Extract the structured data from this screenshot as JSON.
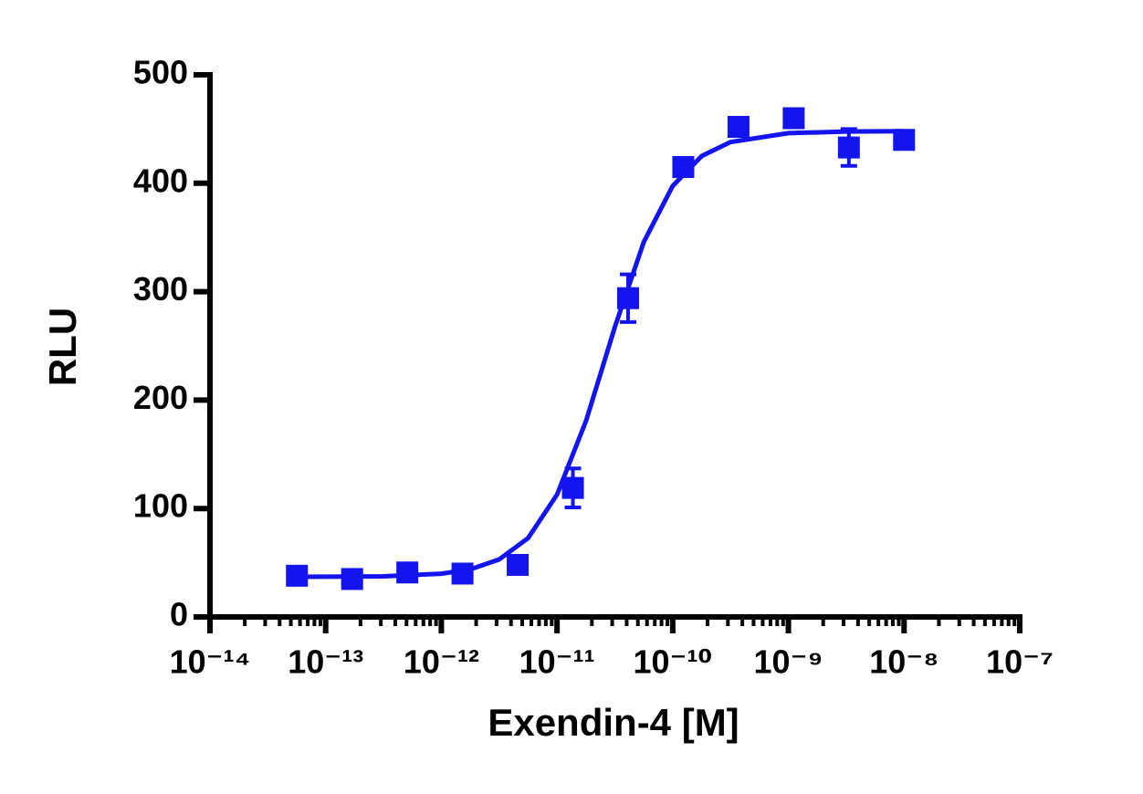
{
  "chart_data": {
    "type": "scatter",
    "xlabel": "Exendin-4 [M]",
    "ylabel": "RLU",
    "xscale": "log",
    "xlim": [
      1e-14,
      1e-07
    ],
    "ylim": [
      0,
      500
    ],
    "xticks": [
      {
        "value": 1e-14,
        "label": "10⁻¹⁴"
      },
      {
        "value": 1e-13,
        "label": "10⁻¹³"
      },
      {
        "value": 1e-12,
        "label": "10⁻¹²"
      },
      {
        "value": 1e-11,
        "label": "10⁻¹¹"
      },
      {
        "value": 1e-10,
        "label": "10⁻¹⁰"
      },
      {
        "value": 1e-09,
        "label": "10⁻⁹"
      },
      {
        "value": 1e-08,
        "label": "10⁻⁸"
      },
      {
        "value": 1e-07,
        "label": "10⁻⁷"
      }
    ],
    "yticks": [
      0,
      100,
      200,
      300,
      400,
      500
    ],
    "color": "#1414ee",
    "x": [
      5.645e-14,
      1.694e-13,
      5.081e-13,
      1.524e-12,
      4.572e-12,
      1.372e-11,
      4.115e-11,
      1.235e-10,
      3.704e-10,
      1.111e-09,
      3.333e-09,
      1e-08
    ],
    "values": [
      38,
      35,
      41,
      40,
      48,
      119,
      294,
      415,
      452,
      460,
      433,
      440
    ],
    "errors": [
      3,
      3,
      3,
      3,
      4,
      18,
      22,
      5,
      5,
      6,
      17,
      4
    ],
    "curve": {
      "x": [
        5.62e-14,
        1e-13,
        3.16e-13,
        1e-12,
        1.78e-12,
        3.16e-12,
        5.62e-12,
        1e-11,
        1.78e-11,
        3.16e-11,
        5.62e-11,
        1e-10,
        1.78e-10,
        3.16e-10,
        1e-09,
        3.16e-09,
        1e-08
      ],
      "values": [
        37,
        37.1,
        37.5,
        39.9,
        43.9,
        53,
        72.7,
        112.8,
        180.7,
        267.3,
        345.8,
        397.5,
        425.1,
        438,
        446.2,
        447.7,
        448
      ]
    }
  }
}
